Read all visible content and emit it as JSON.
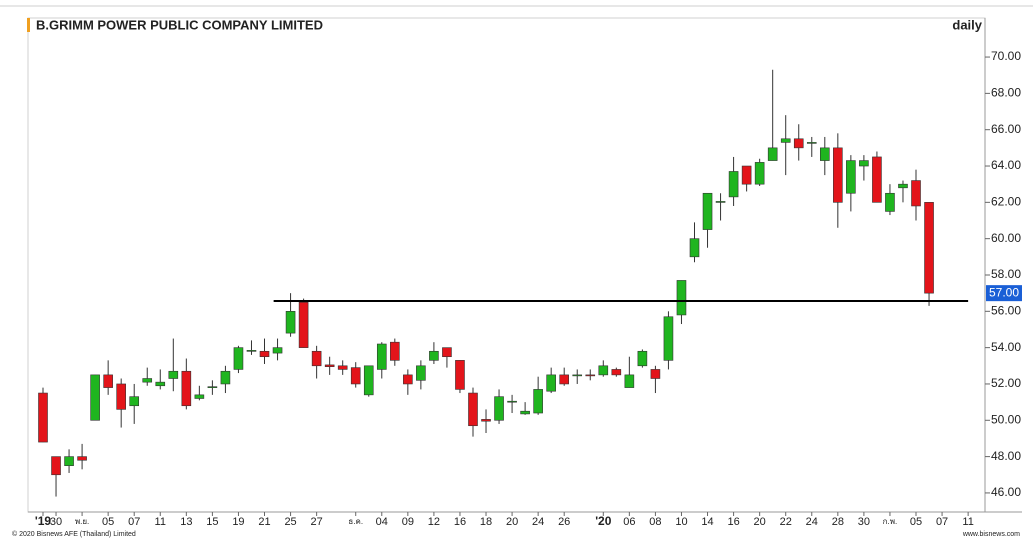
{
  "chart_data": {
    "type": "candlestick",
    "title": "B.GRIMM POWER PUBLIC COMPANY LIMITED",
    "interval_label": "daily",
    "footer_left": "© 2020 Bisnews AFE (Thailand) Limited",
    "footer_right": "www.bisnews.com",
    "up_color": "#1fb51f",
    "down_color": "#e3141a",
    "categories": [
      "'19",
      "30",
      null,
      "พ.ย.",
      null,
      "05",
      null,
      "07",
      null,
      "11",
      null,
      "13",
      null,
      "15",
      null,
      "19",
      null,
      "21",
      null,
      "25",
      null,
      "27",
      null,
      null,
      "ธ.ค.",
      null,
      "04",
      null,
      "09",
      null,
      "12",
      null,
      "16",
      null,
      "18",
      null,
      "20",
      null,
      "24",
      null,
      "26",
      null,
      null,
      "'20",
      null,
      "06",
      null,
      "08",
      null,
      "10",
      null,
      "14",
      null,
      "16",
      null,
      "20",
      null,
      "22",
      null,
      "24",
      null,
      "28",
      null,
      "30",
      null,
      "ก.พ.",
      null,
      "05",
      null,
      "07",
      null,
      "11"
    ],
    "open": [
      51.5,
      48.0,
      47.5,
      48.0,
      50.0,
      52.5,
      52.0,
      50.8,
      52.1,
      51.9,
      52.3,
      52.7,
      51.2,
      51.8,
      52.0,
      52.8,
      53.8,
      53.8,
      53.7,
      54.8,
      56.5,
      53.8,
      53.05,
      53.0,
      52.9,
      51.4,
      52.8,
      54.3,
      52.5,
      52.2,
      53.3,
      54.0,
      53.3,
      51.5,
      50.05,
      50.0,
      51.0,
      50.35,
      50.4,
      51.6,
      52.5,
      52.45,
      52.5,
      52.5,
      52.8,
      51.8,
      53.0,
      52.8,
      53.3,
      55.8,
      59.0,
      60.5,
      62.0,
      62.3,
      64.0,
      63.0,
      64.3,
      65.3,
      65.5,
      65.25,
      64.3,
      65.0,
      62.5,
      64.0,
      64.5,
      61.5,
      62.8,
      63.2,
      62.0,
      null,
      null,
      null
    ],
    "high": [
      51.8,
      48.0,
      48.4,
      48.7,
      52.5,
      53.3,
      52.3,
      52.0,
      52.9,
      52.8,
      54.5,
      53.4,
      51.9,
      52.2,
      53.0,
      54.1,
      54.4,
      54.5,
      54.5,
      57.0,
      56.7,
      54.1,
      53.5,
      53.3,
      53.2,
      53.0,
      54.3,
      54.5,
      52.8,
      53.3,
      54.3,
      54.0,
      53.3,
      51.8,
      50.6,
      51.7,
      51.4,
      51.0,
      52.4,
      52.9,
      52.9,
      52.8,
      52.8,
      53.3,
      52.9,
      53.5,
      53.9,
      53.0,
      56.0,
      57.7,
      60.9,
      62.5,
      62.5,
      64.5,
      64.0,
      64.4,
      69.3,
      66.8,
      66.3,
      65.6,
      65.6,
      65.8,
      64.6,
      64.6,
      64.8,
      63.0,
      63.2,
      63.8,
      62.0,
      null,
      null,
      null
    ],
    "low": [
      48.8,
      45.8,
      47.1,
      47.3,
      50.0,
      51.4,
      49.6,
      49.8,
      51.9,
      51.7,
      51.6,
      50.6,
      51.1,
      51.4,
      51.5,
      52.6,
      53.6,
      53.1,
      53.3,
      54.6,
      54.0,
      52.3,
      52.5,
      52.5,
      51.8,
      51.3,
      52.3,
      53.0,
      51.4,
      51.7,
      53.1,
      52.9,
      51.5,
      49.1,
      49.3,
      49.8,
      50.4,
      50.3,
      50.3,
      51.5,
      51.9,
      52.0,
      52.2,
      52.4,
      52.4,
      51.8,
      52.9,
      51.5,
      52.8,
      55.3,
      58.7,
      59.5,
      61.0,
      61.8,
      62.6,
      62.9,
      64.3,
      63.5,
      64.3,
      64.5,
      63.5,
      60.6,
      61.5,
      63.2,
      62.0,
      61.3,
      62.0,
      61.0,
      56.3,
      null,
      null,
      null
    ],
    "close": [
      48.8,
      47.0,
      48.0,
      47.8,
      52.5,
      51.8,
      50.6,
      51.3,
      52.3,
      52.1,
      52.7,
      50.8,
      51.4,
      51.85,
      52.7,
      54.0,
      53.85,
      53.5,
      54.0,
      56.0,
      54.0,
      53.0,
      52.95,
      52.8,
      52.0,
      53.0,
      54.2,
      53.3,
      52.0,
      53.0,
      53.8,
      53.5,
      51.7,
      49.7,
      49.95,
      51.3,
      51.05,
      50.5,
      51.7,
      52.5,
      52.0,
      52.5,
      52.45,
      53.0,
      52.5,
      52.5,
      53.8,
      52.3,
      55.7,
      57.7,
      60.0,
      62.5,
      62.05,
      63.7,
      63.0,
      64.2,
      65.0,
      65.5,
      65.0,
      65.3,
      65.0,
      62.0,
      64.3,
      64.3,
      62.0,
      62.5,
      63.0,
      61.8,
      57.0,
      null,
      null,
      null
    ],
    "last_price_label": "57.00",
    "reference_line": {
      "value": 56.57,
      "from": 17.7,
      "to": 71
    },
    "ylim": [
      44.95,
      72.15
    ],
    "yticks": [
      {
        "value": 46,
        "label": "46.00"
      },
      {
        "value": 48,
        "label": "48.00"
      },
      {
        "value": 50,
        "label": "50.00"
      },
      {
        "value": 52,
        "label": "52.00"
      },
      {
        "value": 54,
        "label": "54.00"
      },
      {
        "value": 56,
        "label": "56.00"
      },
      {
        "value": 58,
        "label": "58.00"
      },
      {
        "value": 60,
        "label": "60.00"
      },
      {
        "value": 62,
        "label": "62.00"
      },
      {
        "value": 64,
        "label": "64.00"
      },
      {
        "value": 66,
        "label": "66.00"
      },
      {
        "value": 68,
        "label": "68.00"
      },
      {
        "value": 70,
        "label": "70.00"
      }
    ]
  }
}
